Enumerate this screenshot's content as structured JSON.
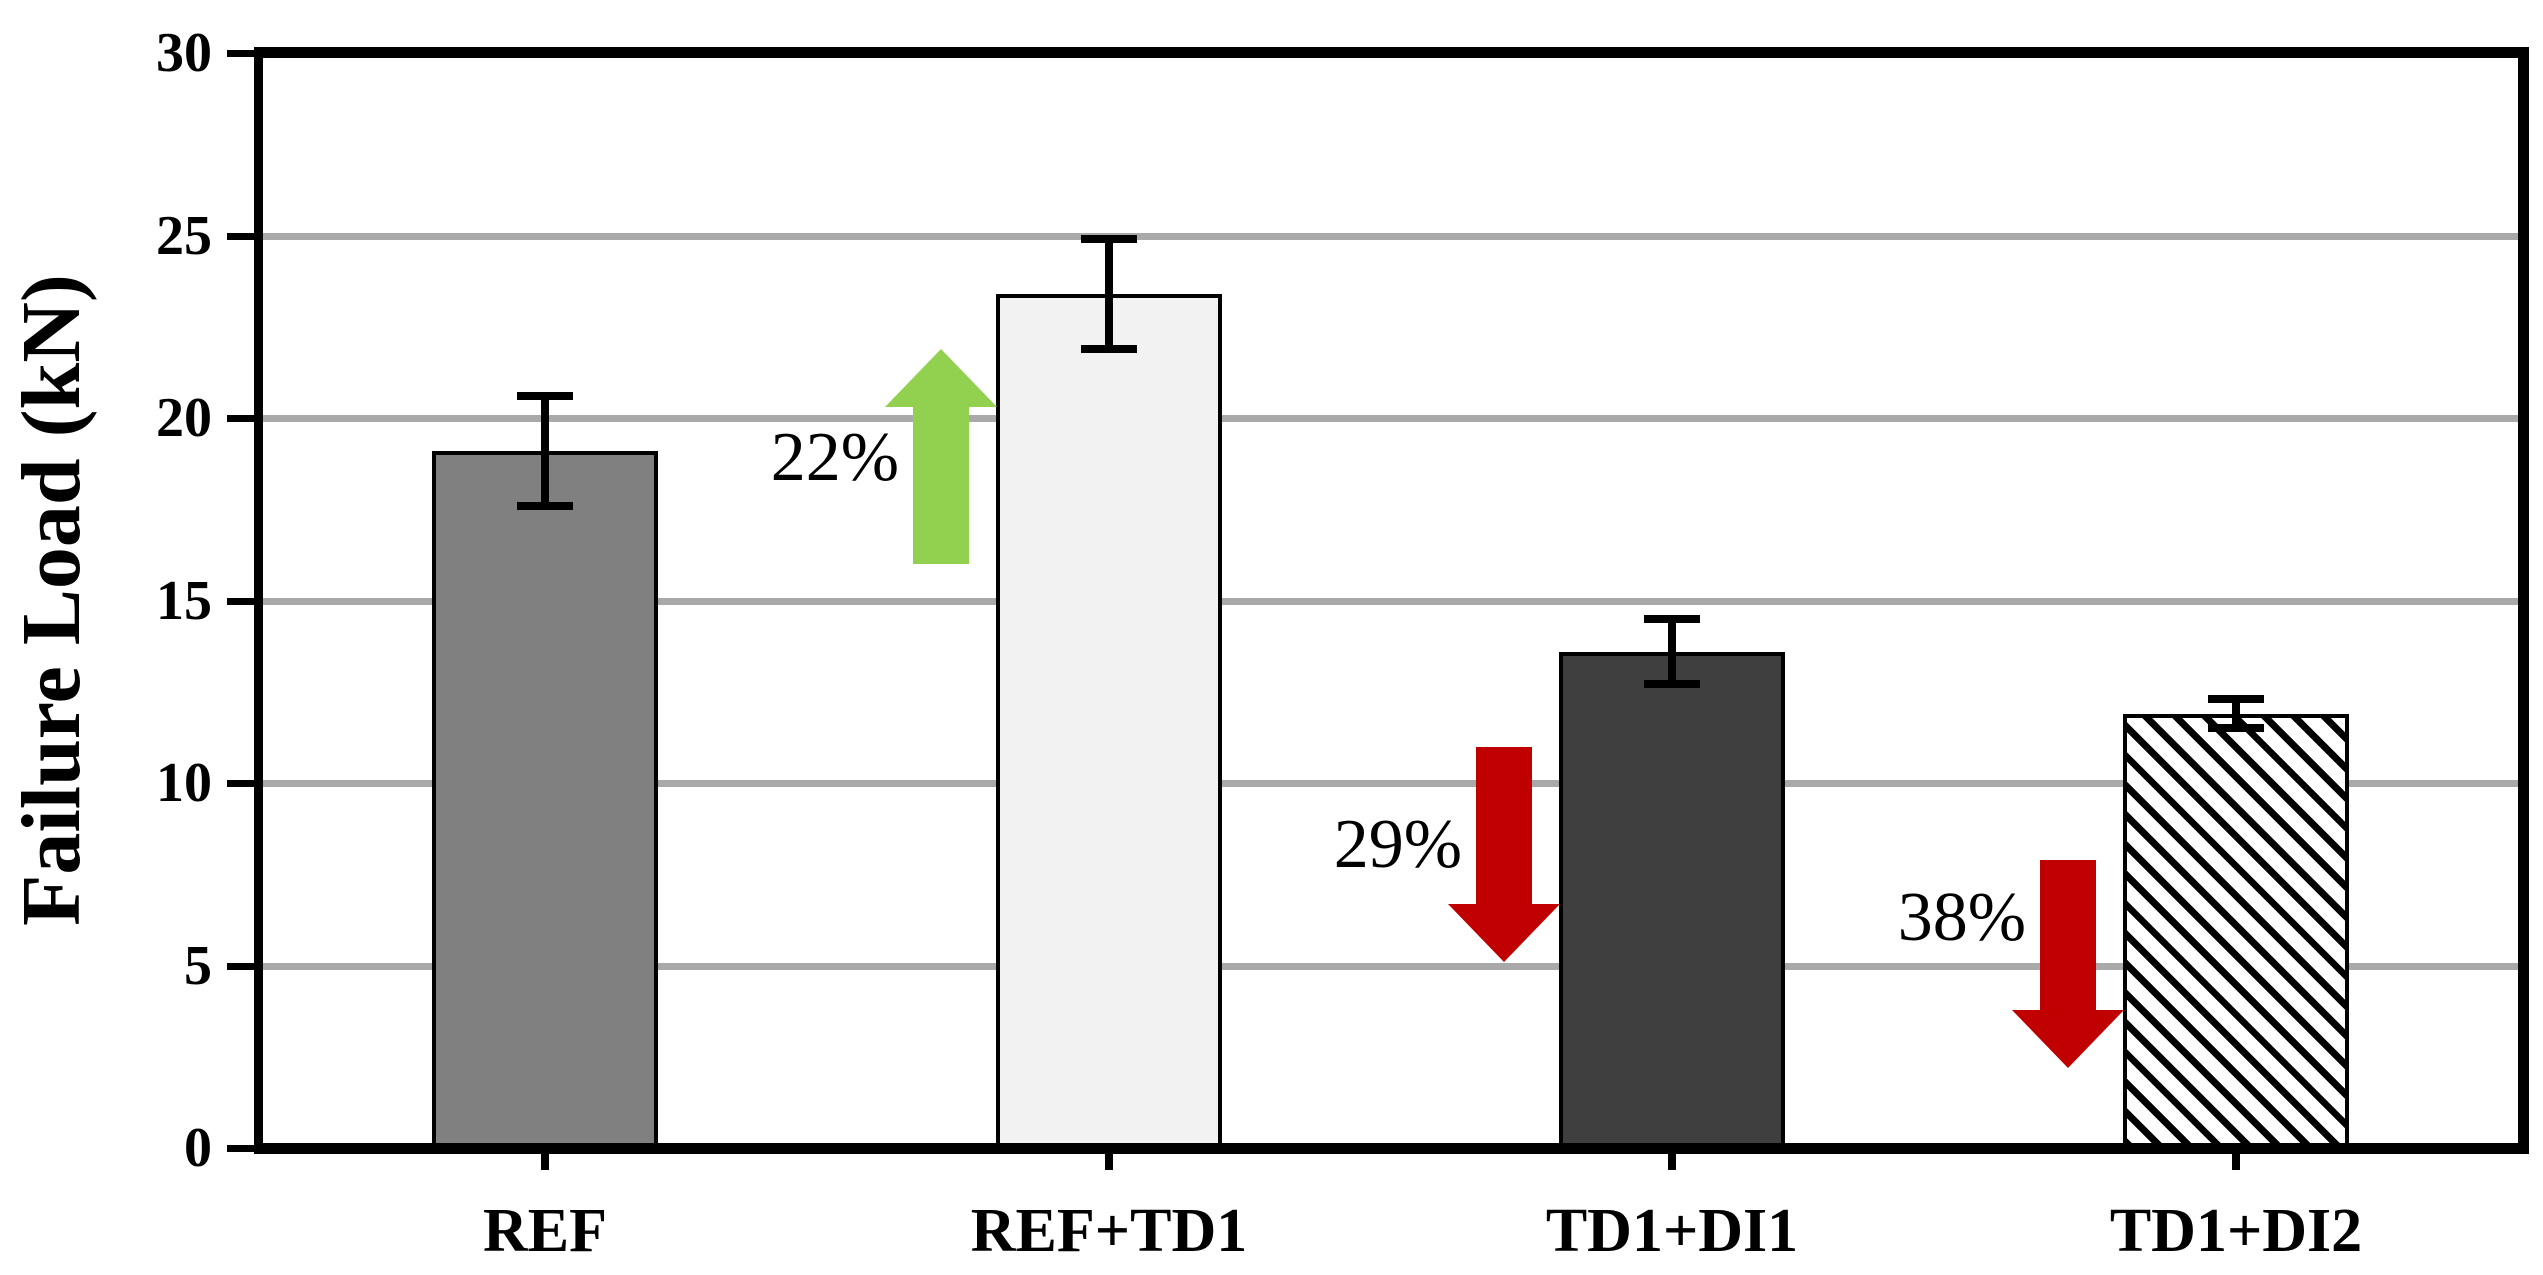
{
  "chart_data": {
    "type": "bar",
    "title": "",
    "ylabel": "Failure Load (kN)",
    "xlabel": "",
    "ylim": [
      0,
      30
    ],
    "yticks": [
      0,
      5,
      10,
      15,
      20,
      25,
      30
    ],
    "grid": "horizontal-gray-lines",
    "legend": "none",
    "categories": [
      "REF",
      "REF+TD1",
      "TD1+DI1",
      "TD1+DI2"
    ],
    "values": [
      19.1,
      23.4,
      13.6,
      11.9
    ],
    "errors": [
      1.5,
      1.5,
      0.9,
      0.4
    ],
    "bar_styles": [
      {
        "fill": "#808080",
        "hatch": false,
        "outline": "#000000"
      },
      {
        "fill": "#F2F2F2",
        "hatch": false,
        "outline": "#000000"
      },
      {
        "fill": "#3F3F3F",
        "hatch": false,
        "outline": "#000000"
      },
      {
        "fill": "#FFFFFF",
        "hatch": true,
        "outline": "#000000"
      }
    ],
    "annotations": [
      {
        "label": "22%",
        "direction": "up",
        "color": "#92D050",
        "category": 1,
        "tip_kn": 21.9,
        "tail_kn": 16.0,
        "label_kn": 18.9
      },
      {
        "label": "29%",
        "direction": "down",
        "color": "#C00000",
        "category": 2,
        "tip_kn": 5.1,
        "tail_kn": 11.0,
        "label_kn": 8.3
      },
      {
        "label": "38%",
        "direction": "down",
        "color": "#C00000",
        "category": 3,
        "tip_kn": 2.2,
        "tail_kn": 7.9,
        "label_kn": 6.3
      }
    ]
  },
  "colors": {
    "background": "#FFFFFF",
    "axis": "#000000",
    "gridline": "#A9A9A9",
    "error_bar": "#000000",
    "text": "#000000",
    "increase_arrow": "#92D050",
    "decrease_arrow": "#C00000"
  }
}
